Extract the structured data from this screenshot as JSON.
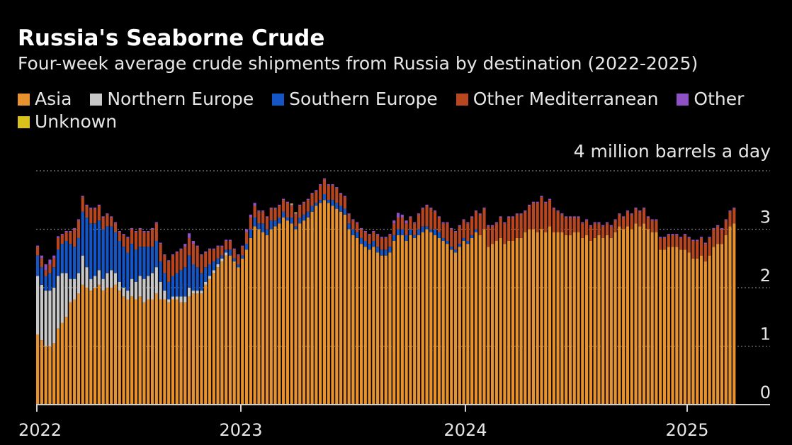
{
  "title": "Russia's Seaborne Crude",
  "subtitle": "Four-week average crude shipments from Russia by destination (2022-2025)",
  "legend": [
    {
      "label": "Asia",
      "color": "#e8922e"
    },
    {
      "label": "Northern Europe",
      "color": "#c8c8c8"
    },
    {
      "label": "Southern Europe",
      "color": "#1456c6"
    },
    {
      "label": "Other Mediterranean",
      "color": "#b8461f"
    },
    {
      "label": "Other",
      "color": "#8e52c6"
    },
    {
      "label": "Unknown",
      "color": "#d9c21c"
    }
  ],
  "chart_data": {
    "type": "bar",
    "stacked": true,
    "unit_label": "4 million barrels a day",
    "ylim": [
      0,
      4
    ],
    "yticks": [
      0,
      1,
      2,
      3
    ],
    "xticks": [
      "2022",
      "2023",
      "2024",
      "2025"
    ],
    "grid": true,
    "legend_position": "top",
    "series": [
      {
        "name": "Asia",
        "color": "#e8922e",
        "values": [
          1.2,
          1.1,
          1.0,
          1.0,
          1.05,
          1.3,
          1.4,
          1.5,
          1.75,
          1.8,
          1.9,
          2.05,
          2.0,
          1.95,
          2.0,
          2.05,
          1.95,
          2.0,
          2.0,
          2.05,
          1.95,
          1.85,
          1.8,
          1.85,
          1.8,
          1.85,
          1.75,
          1.8,
          1.8,
          1.9,
          1.8,
          1.8,
          1.75,
          1.8,
          1.8,
          1.75,
          1.75,
          1.85,
          1.9,
          1.9,
          1.9,
          2.05,
          2.15,
          2.25,
          2.35,
          2.45,
          2.55,
          2.55,
          2.45,
          2.35,
          2.5,
          2.65,
          2.85,
          3.05,
          3.0,
          2.95,
          2.9,
          3.0,
          3.05,
          3.1,
          3.2,
          3.15,
          3.1,
          3.0,
          3.1,
          3.15,
          3.2,
          3.3,
          3.4,
          3.45,
          3.5,
          3.45,
          3.4,
          3.35,
          3.3,
          3.25,
          3.0,
          2.9,
          2.85,
          2.75,
          2.7,
          2.65,
          2.7,
          2.6,
          2.55,
          2.55,
          2.6,
          2.8,
          2.9,
          2.9,
          2.8,
          2.9,
          2.85,
          2.9,
          2.95,
          3.0,
          2.95,
          2.9,
          2.85,
          2.8,
          2.75,
          2.65,
          2.6,
          2.7,
          2.8,
          2.75,
          2.85,
          2.95,
          2.9,
          3.0,
          2.7,
          2.75,
          2.8,
          2.85,
          2.75,
          2.8,
          2.8,
          2.85,
          2.85,
          2.95,
          3.0,
          3.0,
          2.95,
          3.0,
          2.95,
          3.05,
          2.95,
          2.95,
          2.95,
          2.9,
          2.9,
          2.95,
          2.95,
          2.85,
          2.9,
          2.8,
          2.85,
          2.9,
          2.85,
          2.9,
          2.85,
          2.95,
          3.05,
          3.0,
          3.05,
          3.0,
          3.1,
          3.05,
          3.1,
          3.0,
          2.95,
          2.95,
          2.65,
          2.65,
          2.7,
          2.7,
          2.7,
          2.65,
          2.65,
          2.6,
          2.5,
          2.5,
          2.55,
          2.45,
          2.55,
          2.7,
          2.75,
          2.75,
          2.9,
          3.05,
          3.1
        ]
      },
      {
        "name": "Northern Europe",
        "color": "#c8c8c8",
        "values": [
          1.0,
          0.95,
          0.95,
          0.95,
          0.95,
          0.9,
          0.85,
          0.75,
          0.4,
          0.35,
          0.35,
          0.5,
          0.35,
          0.2,
          0.2,
          0.25,
          0.2,
          0.25,
          0.3,
          0.2,
          0.15,
          0.15,
          0.15,
          0.3,
          0.3,
          0.35,
          0.4,
          0.4,
          0.45,
          0.45,
          0.3,
          0.15,
          0.05,
          0.05,
          0.05,
          0.1,
          0.1,
          0.15,
          0.05,
          0.05,
          0.05,
          0.05,
          0.05,
          0.05,
          0.05,
          0.05,
          0.05,
          0.0,
          0.0,
          0.0,
          0.0,
          0.0,
          0.0,
          0.0,
          0.0,
          0.0,
          0.0,
          0.0,
          0.0,
          0.0,
          0.0,
          0.0,
          0.0,
          0.0,
          0.0,
          0.0,
          0.0,
          0.0,
          0.0,
          0.0,
          0.0,
          0.0,
          0.0,
          0.0,
          0.0,
          0.0,
          0.0,
          0.0,
          0.0,
          0.0,
          0.0,
          0.0,
          0.0,
          0.0,
          0.0,
          0.0,
          0.0,
          0.0,
          0.0,
          0.0,
          0.0,
          0.0,
          0.0,
          0.0,
          0.0,
          0.0,
          0.0,
          0.0,
          0.0,
          0.0,
          0.0,
          0.0,
          0.0,
          0.0,
          0.0,
          0.0,
          0.0,
          0.0,
          0.0,
          0.0,
          0.0,
          0.0,
          0.0,
          0.0,
          0.0,
          0.0,
          0.0,
          0.0,
          0.0,
          0.0,
          0.0,
          0.0,
          0.0,
          0.0,
          0.0,
          0.0,
          0.0,
          0.0,
          0.0,
          0.0,
          0.0,
          0.0,
          0.0,
          0.0,
          0.0,
          0.0,
          0.0,
          0.0,
          0.0,
          0.0,
          0.0,
          0.0,
          0.0,
          0.0,
          0.0,
          0.0,
          0.0,
          0.0,
          0.0,
          0.0,
          0.0,
          0.0,
          0.0,
          0.0,
          0.0,
          0.0,
          0.0,
          0.0,
          0.0,
          0.0,
          0.0,
          0.0,
          0.0,
          0.0,
          0.0,
          0.0,
          0.0,
          0.0,
          0.0,
          0.0,
          0.0,
          0.0,
          0.0,
          0.0
        ]
      },
      {
        "name": "Southern Europe",
        "color": "#1456c6",
        "values": [
          0.35,
          0.3,
          0.25,
          0.3,
          0.35,
          0.45,
          0.5,
          0.55,
          0.6,
          0.55,
          0.6,
          0.75,
          0.85,
          0.95,
          0.9,
          0.85,
          0.85,
          0.8,
          0.75,
          0.7,
          0.7,
          0.7,
          0.65,
          0.6,
          0.55,
          0.5,
          0.55,
          0.5,
          0.45,
          0.45,
          0.35,
          0.3,
          0.3,
          0.35,
          0.4,
          0.45,
          0.5,
          0.55,
          0.45,
          0.4,
          0.3,
          0.25,
          0.2,
          0.15,
          0.1,
          0.05,
          0.05,
          0.1,
          0.05,
          0.05,
          0.05,
          0.1,
          0.15,
          0.15,
          0.1,
          0.15,
          0.1,
          0.15,
          0.1,
          0.1,
          0.1,
          0.05,
          0.1,
          0.05,
          0.1,
          0.1,
          0.1,
          0.1,
          0.05,
          0.05,
          0.1,
          0.05,
          0.1,
          0.1,
          0.1,
          0.1,
          0.1,
          0.1,
          0.1,
          0.1,
          0.1,
          0.1,
          0.1,
          0.1,
          0.1,
          0.1,
          0.1,
          0.1,
          0.1,
          0.1,
          0.1,
          0.1,
          0.05,
          0.1,
          0.1,
          0.05,
          0.05,
          0.1,
          0.1,
          0.05,
          0.05,
          0.05,
          0.05,
          0.05,
          0.05,
          0.05,
          0.05,
          0.05,
          0.0,
          0.0,
          0.0,
          0.0,
          0.0,
          0.0,
          0.0,
          0.0,
          0.0,
          0.0,
          0.0,
          0.0,
          0.0,
          0.0,
          0.0,
          0.0,
          0.0,
          0.0,
          0.0,
          0.0,
          0.0,
          0.0,
          0.0,
          0.0,
          0.0,
          0.0,
          0.0,
          0.0,
          0.0,
          0.0,
          0.0,
          0.0,
          0.0,
          0.0,
          0.0,
          0.0,
          0.0,
          0.0,
          0.0,
          0.0,
          0.0,
          0.0,
          0.0,
          0.0,
          0.0,
          0.0,
          0.0,
          0.0,
          0.0,
          0.0,
          0.0,
          0.0,
          0.0,
          0.0,
          0.0,
          0.0,
          0.0,
          0.0,
          0.0,
          0.0,
          0.0,
          0.0,
          0.0
        ]
      },
      {
        "name": "Other Mediterranean",
        "color": "#b8461f",
        "values": [
          0.15,
          0.15,
          0.1,
          0.15,
          0.15,
          0.2,
          0.15,
          0.15,
          0.2,
          0.3,
          0.3,
          0.25,
          0.2,
          0.25,
          0.25,
          0.25,
          0.2,
          0.2,
          0.15,
          0.15,
          0.15,
          0.2,
          0.25,
          0.25,
          0.3,
          0.3,
          0.25,
          0.25,
          0.3,
          0.3,
          0.3,
          0.3,
          0.35,
          0.35,
          0.35,
          0.35,
          0.35,
          0.3,
          0.35,
          0.35,
          0.3,
          0.25,
          0.25,
          0.2,
          0.2,
          0.15,
          0.15,
          0.15,
          0.15,
          0.15,
          0.15,
          0.2,
          0.2,
          0.2,
          0.2,
          0.2,
          0.2,
          0.2,
          0.2,
          0.2,
          0.2,
          0.25,
          0.2,
          0.2,
          0.2,
          0.2,
          0.2,
          0.2,
          0.2,
          0.25,
          0.25,
          0.25,
          0.25,
          0.25,
          0.2,
          0.2,
          0.15,
          0.15,
          0.15,
          0.15,
          0.15,
          0.15,
          0.15,
          0.2,
          0.2,
          0.2,
          0.2,
          0.2,
          0.2,
          0.2,
          0.2,
          0.2,
          0.2,
          0.25,
          0.3,
          0.35,
          0.35,
          0.3,
          0.25,
          0.25,
          0.3,
          0.3,
          0.3,
          0.3,
          0.3,
          0.3,
          0.3,
          0.3,
          0.35,
          0.35,
          0.35,
          0.3,
          0.3,
          0.35,
          0.35,
          0.4,
          0.4,
          0.4,
          0.4,
          0.35,
          0.4,
          0.45,
          0.5,
          0.55,
          0.5,
          0.45,
          0.4,
          0.35,
          0.3,
          0.3,
          0.3,
          0.25,
          0.25,
          0.25,
          0.25,
          0.25,
          0.25,
          0.2,
          0.2,
          0.2,
          0.2,
          0.2,
          0.2,
          0.2,
          0.25,
          0.25,
          0.25,
          0.25,
          0.25,
          0.2,
          0.2,
          0.2,
          0.2,
          0.2,
          0.2,
          0.2,
          0.2,
          0.2,
          0.25,
          0.25,
          0.3,
          0.3,
          0.3,
          0.3,
          0.3,
          0.3,
          0.3,
          0.25,
          0.25,
          0.25,
          0.25,
          0.25
        ]
      },
      {
        "name": "Other",
        "color": "#8e52c6",
        "values": [
          0.02,
          0.05,
          0.1,
          0.08,
          0.05,
          0.03,
          0.02,
          0.02,
          0.02,
          0.02,
          0.02,
          0.02,
          0.02,
          0.02,
          0.02,
          0.02,
          0.02,
          0.02,
          0.02,
          0.02,
          0.02,
          0.02,
          0.02,
          0.02,
          0.02,
          0.02,
          0.02,
          0.02,
          0.02,
          0.02,
          0.02,
          0.02,
          0.02,
          0.02,
          0.02,
          0.02,
          0.05,
          0.08,
          0.05,
          0.02,
          0.02,
          0.02,
          0.02,
          0.02,
          0.02,
          0.02,
          0.02,
          0.02,
          0.02,
          0.02,
          0.02,
          0.05,
          0.05,
          0.05,
          0.02,
          0.02,
          0.02,
          0.02,
          0.02,
          0.02,
          0.02,
          0.02,
          0.02,
          0.02,
          0.02,
          0.02,
          0.02,
          0.02,
          0.02,
          0.02,
          0.02,
          0.02,
          0.02,
          0.02,
          0.02,
          0.02,
          0.02,
          0.02,
          0.02,
          0.02,
          0.02,
          0.02,
          0.02,
          0.02,
          0.02,
          0.02,
          0.02,
          0.05,
          0.08,
          0.05,
          0.05,
          0.02,
          0.02,
          0.02,
          0.02,
          0.02,
          0.02,
          0.02,
          0.02,
          0.02,
          0.02,
          0.02,
          0.02,
          0.02,
          0.02,
          0.02,
          0.02,
          0.02,
          0.02,
          0.02,
          0.02,
          0.02,
          0.02,
          0.02,
          0.02,
          0.02,
          0.02,
          0.02,
          0.02,
          0.02,
          0.02,
          0.02,
          0.02,
          0.02,
          0.02,
          0.02,
          0.02,
          0.02,
          0.02,
          0.02,
          0.02,
          0.02,
          0.02,
          0.02,
          0.02,
          0.02,
          0.02,
          0.02,
          0.02,
          0.02,
          0.02,
          0.02,
          0.02,
          0.02,
          0.02,
          0.02,
          0.02,
          0.02,
          0.02,
          0.02,
          0.02,
          0.02,
          0.02,
          0.02,
          0.02,
          0.02,
          0.02,
          0.02,
          0.02,
          0.02,
          0.02,
          0.02,
          0.02,
          0.02,
          0.02,
          0.02,
          0.02,
          0.02,
          0.02,
          0.02,
          0.02,
          0.02,
          0.02,
          0.02,
          0.02
        ]
      },
      {
        "name": "Unknown",
        "color": "#d9c21c",
        "values": [
          0.0,
          0.0,
          0.0,
          0.0,
          0.0,
          0.0,
          0.0,
          0.0,
          0.0,
          0.0,
          0.0,
          0.0,
          0.0,
          0.0,
          0.0,
          0.0,
          0.0,
          0.0,
          0.0,
          0.0,
          0.0,
          0.0,
          0.0,
          0.0,
          0.0,
          0.0,
          0.0,
          0.0,
          0.0,
          0.0,
          0.0,
          0.0,
          0.0,
          0.0,
          0.0,
          0.0,
          0.0,
          0.0,
          0.0,
          0.0,
          0.0,
          0.0,
          0.0,
          0.0,
          0.0,
          0.0,
          0.0,
          0.0,
          0.0,
          0.0,
          0.0,
          0.0,
          0.0,
          0.0,
          0.0,
          0.0,
          0.0,
          0.0,
          0.0,
          0.0,
          0.0,
          0.0,
          0.02,
          0.02,
          0.0,
          0.0,
          0.0,
          0.0,
          0.0,
          0.0,
          0.0,
          0.0,
          0.0,
          0.0,
          0.0,
          0.0,
          0.0,
          0.0,
          0.0,
          0.0,
          0.0,
          0.0,
          0.0,
          0.0,
          0.0,
          0.0,
          0.0,
          0.0,
          0.0,
          0.0,
          0.0,
          0.0,
          0.0,
          0.0,
          0.0,
          0.0,
          0.0,
          0.0,
          0.0,
          0.0,
          0.0,
          0.0,
          0.0,
          0.0,
          0.0,
          0.0,
          0.0,
          0.0,
          0.0,
          0.0,
          0.0,
          0.0,
          0.0,
          0.0,
          0.0,
          0.0,
          0.0,
          0.0,
          0.0,
          0.0,
          0.0,
          0.0,
          0.0,
          0.0,
          0.0,
          0.0,
          0.0,
          0.0,
          0.0,
          0.0,
          0.0,
          0.0,
          0.0,
          0.0,
          0.0,
          0.0,
          0.0,
          0.0,
          0.0,
          0.0,
          0.0,
          0.0,
          0.0,
          0.0,
          0.0,
          0.0,
          0.0,
          0.0,
          0.0,
          0.0,
          0.0,
          0.0,
          0.0,
          0.0,
          0.0,
          0.0,
          0.0,
          0.0,
          0.0,
          0.0,
          0.0,
          0.0,
          0.0,
          0.0,
          0.0,
          0.0,
          0.0,
          0.0,
          0.0,
          0.0,
          0.0,
          0.0,
          0.0,
          0.03,
          0.03,
          0.04
        ]
      }
    ]
  }
}
